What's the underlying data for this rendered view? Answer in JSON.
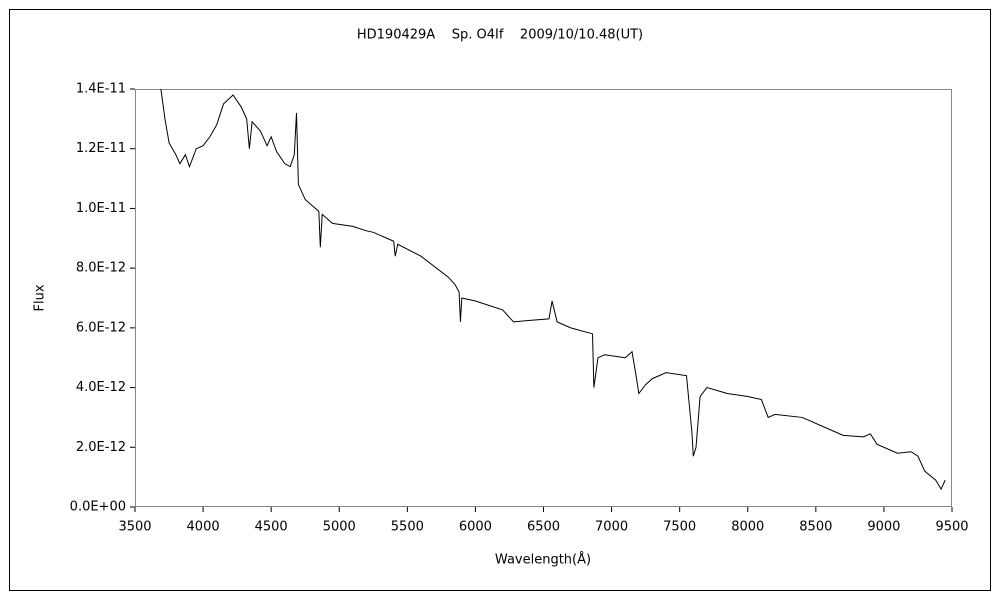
{
  "chart_data": {
    "type": "line",
    "title": "HD190429A    Sp. O4If    2009/10/10.48(UT)",
    "x_label": "Wavelength(Å)",
    "y_label": "Flux",
    "color": "#000000",
    "xlim": [
      3500,
      9500
    ],
    "xticks": [
      3500,
      4000,
      4500,
      5000,
      5500,
      6000,
      6500,
      7000,
      7500,
      8000,
      8500,
      9000,
      9500
    ],
    "ylim": [
      0,
      1.4e-11
    ],
    "yticks": [
      {
        "value": 0,
        "label": "0.0E+00"
      },
      {
        "value": 2e-12,
        "label": "2.0E-12"
      },
      {
        "value": 4e-12,
        "label": "4.0E-12"
      },
      {
        "value": 6e-12,
        "label": "6.0E-12"
      },
      {
        "value": 8e-12,
        "label": "8.0E-12"
      },
      {
        "value": 1e-11,
        "label": "1.0E-11"
      },
      {
        "value": 1.2e-11,
        "label": "1.2E-11"
      },
      {
        "value": 1.4e-11,
        "label": "1.4E-11"
      }
    ],
    "x": [
      3690,
      3720,
      3750,
      3800,
      3830,
      3870,
      3900,
      3950,
      4000,
      4050,
      4100,
      4150,
      4220,
      4280,
      4320,
      4340,
      4360,
      4420,
      4470,
      4500,
      4540,
      4600,
      4640,
      4670,
      4686,
      4700,
      4750,
      4800,
      4850,
      4861,
      4875,
      4950,
      5100,
      5200,
      5250,
      5400,
      5411,
      5430,
      5600,
      5800,
      5850,
      5880,
      5890,
      5900,
      6000,
      6200,
      6280,
      6400,
      6540,
      6563,
      6600,
      6700,
      6860,
      6870,
      6900,
      6950,
      7100,
      7150,
      7180,
      7200,
      7250,
      7300,
      7400,
      7550,
      7590,
      7600,
      7620,
      7650,
      7700,
      7850,
      8000,
      8100,
      8150,
      8200,
      8400,
      8600,
      8700,
      8850,
      8900,
      8950,
      9100,
      9200,
      9250,
      9300,
      9380,
      9420,
      9450
    ],
    "values": [
      1.4e-11,
      1.3e-11,
      1.22e-11,
      1.18e-11,
      1.15e-11,
      1.18e-11,
      1.14e-11,
      1.2e-11,
      1.21e-11,
      1.24e-11,
      1.28e-11,
      1.35e-11,
      1.38e-11,
      1.34e-11,
      1.3e-11,
      1.2e-11,
      1.29e-11,
      1.26e-11,
      1.21e-11,
      1.24e-11,
      1.19e-11,
      1.15e-11,
      1.14e-11,
      1.18e-11,
      1.32e-11,
      1.08e-11,
      1.03e-11,
      1.01e-11,
      9.9e-12,
      8.7e-12,
      9.8e-12,
      9.5e-12,
      9.4e-12,
      9.25e-12,
      9.2e-12,
      8.9e-12,
      8.4e-12,
      8.8e-12,
      8.4e-12,
      7.7e-12,
      7.45e-12,
      7.2e-12,
      6.2e-12,
      7e-12,
      6.9e-12,
      6.6e-12,
      6.2e-12,
      6.25e-12,
      6.3e-12,
      6.9e-12,
      6.2e-12,
      6e-12,
      5.8e-12,
      4e-12,
      5e-12,
      5.1e-12,
      5e-12,
      5.2e-12,
      4.4e-12,
      3.8e-12,
      4.1e-12,
      4.3e-12,
      4.5e-12,
      4.4e-12,
      2.5e-12,
      1.7e-12,
      2e-12,
      3.7e-12,
      4e-12,
      3.8e-12,
      3.7e-12,
      3.6e-12,
      3e-12,
      3.1e-12,
      3e-12,
      2.6e-12,
      2.4e-12,
      2.35e-12,
      2.45e-12,
      2.1e-12,
      1.8e-12,
      1.85e-12,
      1.7e-12,
      1.2e-12,
      9e-13,
      6e-13,
      9e-13
    ]
  }
}
